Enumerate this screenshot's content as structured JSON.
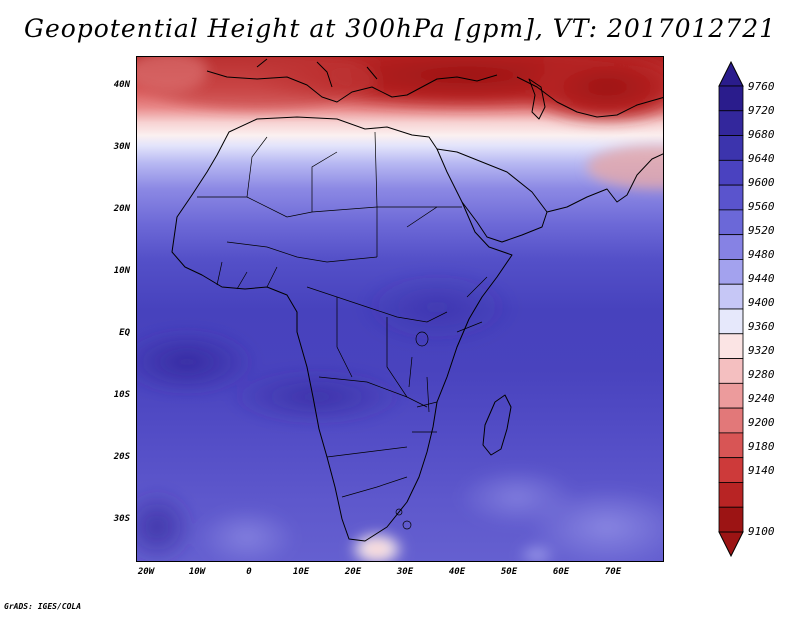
{
  "title": "Geopotential Height at 300hPa [gpm], VT: 2017012721",
  "credit": "GrADS: IGES/COLA",
  "map": {
    "region": "Africa",
    "variable": "Geopotential height at 300 hPa",
    "units": "gpm",
    "lon_range": [
      -22,
      80
    ],
    "lat_range": [
      -37,
      45
    ],
    "lat_ticks": [
      "40N",
      "30N",
      "20N",
      "10N",
      "EQ",
      "10S",
      "20S",
      "30S"
    ],
    "lon_ticks": [
      "20W",
      "10W",
      "0",
      "10E",
      "20E",
      "30E",
      "40E",
      "50E",
      "60E",
      "70E"
    ]
  },
  "colorbar": {
    "labels": [
      "9760",
      "9720",
      "9680",
      "9640",
      "9600",
      "9560",
      "9520",
      "9480",
      "9440",
      "9400",
      "9360",
      "9320",
      "9280",
      "9240",
      "9200",
      "9180",
      "9140",
      "9100"
    ],
    "colors": [
      "#2a1c8c",
      "#33279c",
      "#3c34ad",
      "#4a42c0",
      "#5a54cd",
      "#6b68d8",
      "#8682e4",
      "#a3a2ee",
      "#c6c7f6",
      "#e6e8fb",
      "#fbe4e4",
      "#f4bfc0",
      "#ec9b9c",
      "#e27879",
      "#d85555",
      "#cd3a3a",
      "#b82424",
      "#9c1414"
    ],
    "arrow_top_color": "#2a1c8c",
    "arrow_bottom_color": "#9c1414"
  }
}
